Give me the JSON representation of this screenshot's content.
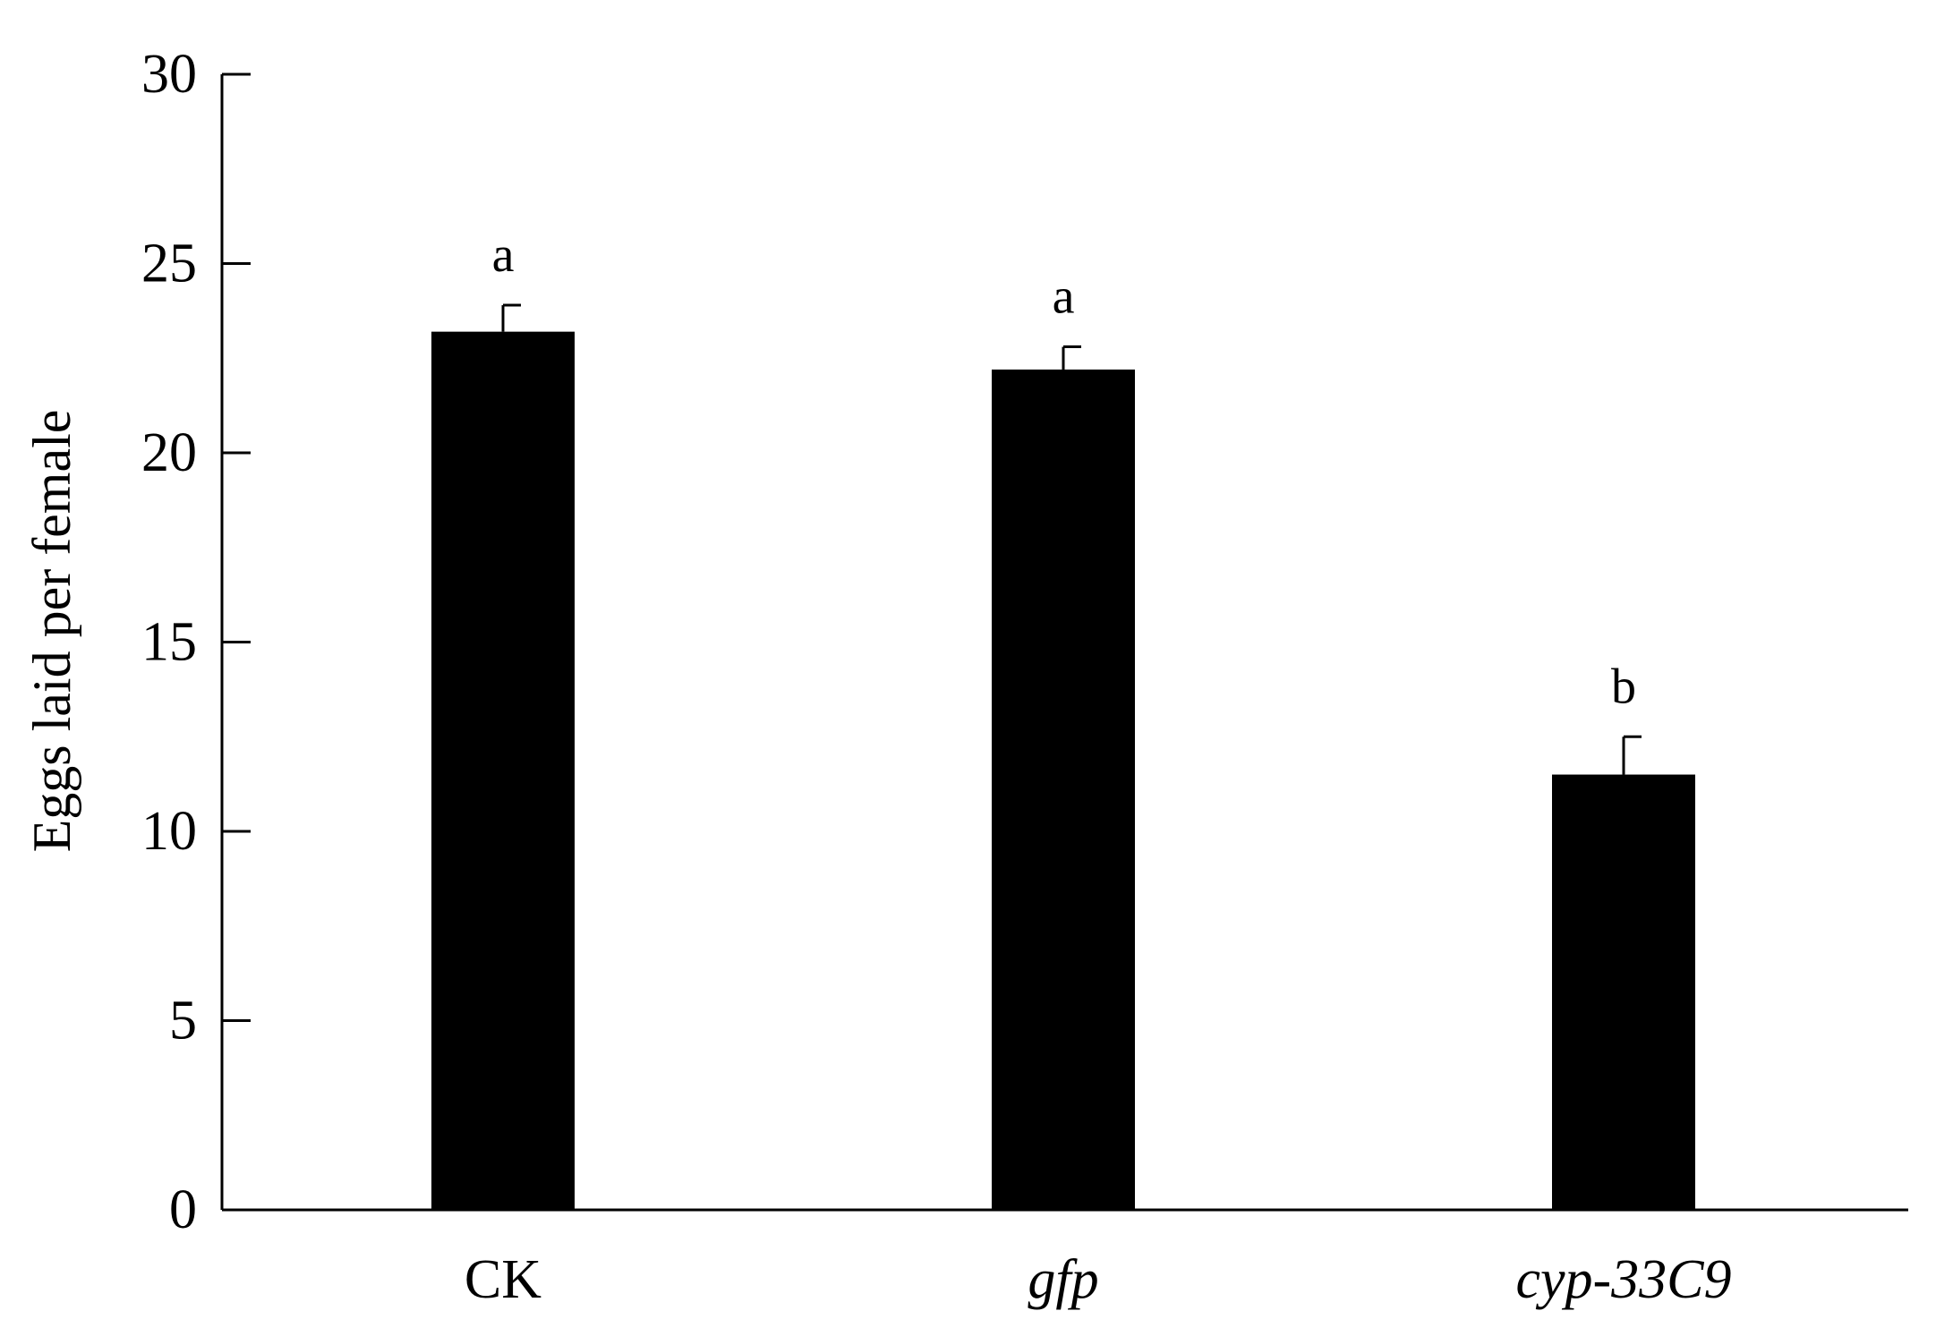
{
  "chart_data": {
    "type": "bar",
    "title": "",
    "xlabel": "",
    "ylabel": "Eggs laid per female",
    "ylim": [
      0,
      30
    ],
    "yticks": [
      0,
      5,
      10,
      15,
      20,
      25,
      30
    ],
    "grid": false,
    "legend": "none",
    "categories": [
      "CK",
      "gfp",
      "cyp-33C9"
    ],
    "category_italic": [
      false,
      true,
      true
    ],
    "values": [
      23.2,
      22.2,
      11.5
    ],
    "errors": [
      0.7,
      0.6,
      1.0
    ],
    "significance": [
      "a",
      "a",
      "b"
    ],
    "bar_color": "#000000",
    "axis_color": "#000000"
  }
}
